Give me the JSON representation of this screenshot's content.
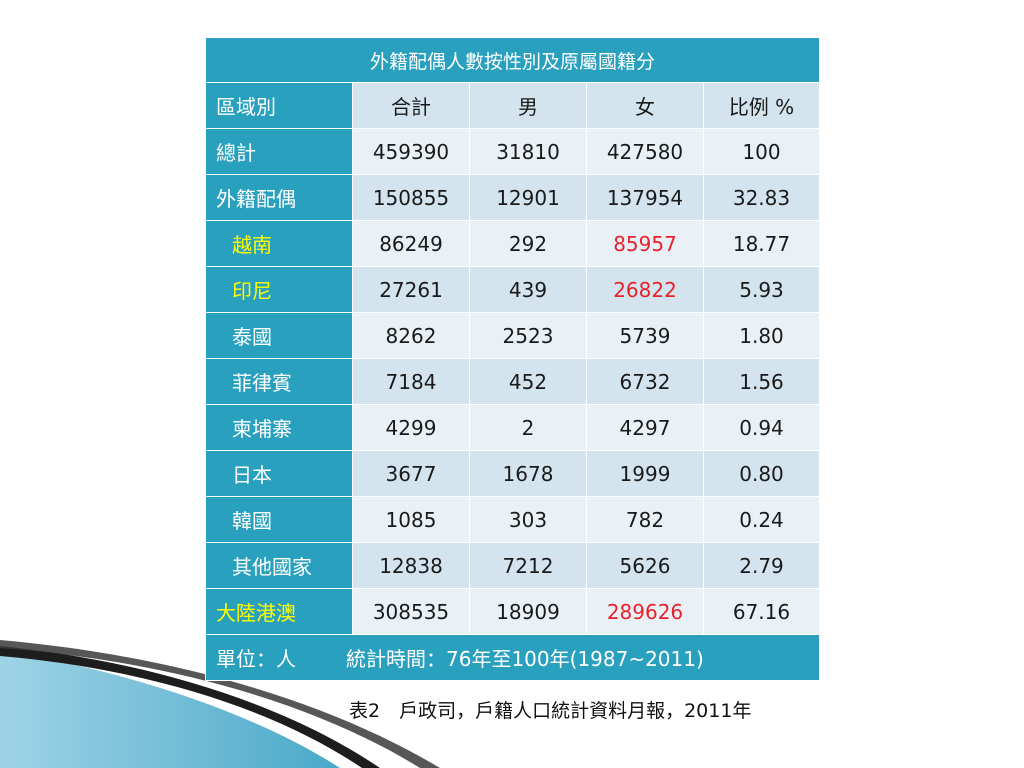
{
  "table": {
    "title": "外籍配偶人數按性別及原屬國籍分",
    "header": {
      "region": "區域別",
      "total": "合計",
      "male": "男",
      "female": "女",
      "ratio": "比例 %"
    },
    "rows": [
      {
        "label": "總計",
        "total": "459390",
        "male": "31810",
        "female": "427580",
        "ratio": "100"
      },
      {
        "label": "外籍配偶",
        "total": "150855",
        "male": "12901",
        "female": "137954",
        "ratio": "32.83"
      },
      {
        "label": "越南",
        "total": "86249",
        "male": "292",
        "female": "85957",
        "ratio": "18.77"
      },
      {
        "label": "印尼",
        "total": "27261",
        "male": "439",
        "female": "26822",
        "ratio": "5.93"
      },
      {
        "label": "泰國",
        "total": "8262",
        "male": "2523",
        "female": "5739",
        "ratio": "1.80"
      },
      {
        "label": "菲律賓",
        "total": "7184",
        "male": "452",
        "female": "6732",
        "ratio": "1.56"
      },
      {
        "label": "柬埔寨",
        "total": "4299",
        "male": "2",
        "female": "4297",
        "ratio": "0.94"
      },
      {
        "label": "日本",
        "total": "3677",
        "male": "1678",
        "female": "1999",
        "ratio": "0.80"
      },
      {
        "label": "韓國",
        "total": "1085",
        "male": "303",
        "female": "782",
        "ratio": "0.24"
      },
      {
        "label": "其他國家",
        "total": "12838",
        "male": "7212",
        "female": "5626",
        "ratio": "2.79"
      },
      {
        "label": "大陸港澳",
        "total": "308535",
        "male": "18909",
        "female": "289626",
        "ratio": "67.16"
      }
    ],
    "footer": {
      "unit": "單位：人",
      "period": "統計時間：76年至100年(1987~2011)"
    }
  },
  "caption": "表2　戶政司，戶籍人口統計資料月報，2011年",
  "colors": {
    "header_teal": "#2aa0bf",
    "row_light": "#d3e4ee",
    "row_lighter": "#e9f1f6",
    "highlight_yellow": "#ffff00",
    "highlight_red": "#e8212a"
  }
}
